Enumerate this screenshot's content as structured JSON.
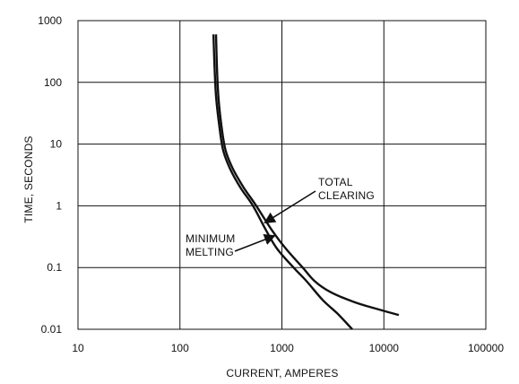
{
  "chart_data": {
    "type": "line",
    "xlabel": "CURRENT, AMPERES",
    "ylabel": "TIME, SECONDS",
    "x_scale": "log",
    "y_scale": "log",
    "xlim": [
      10,
      100000
    ],
    "ylim": [
      0.01,
      1000
    ],
    "x_ticks": [
      "10",
      "100",
      "1000",
      "10000",
      "100000"
    ],
    "y_ticks": [
      "1000",
      "100",
      "10",
      "1",
      "0.1",
      "0.01"
    ],
    "grid": true,
    "series": [
      {
        "name": "TOTAL CLEARING",
        "points": [
          [
            226,
            600
          ],
          [
            230,
            200
          ],
          [
            238,
            60
          ],
          [
            255,
            20
          ],
          [
            280,
            8
          ],
          [
            330,
            4
          ],
          [
            420,
            2
          ],
          [
            560,
            1
          ],
          [
            800,
            0.4
          ],
          [
            1100,
            0.2
          ],
          [
            1600,
            0.1
          ],
          [
            2100,
            0.06
          ],
          [
            3000,
            0.04
          ],
          [
            5000,
            0.028
          ],
          [
            8000,
            0.022
          ],
          [
            14000,
            0.017
          ]
        ]
      },
      {
        "name": "MINIMUM MELTING",
        "points": [
          [
            213,
            600
          ],
          [
            218,
            200
          ],
          [
            226,
            60
          ],
          [
            243,
            20
          ],
          [
            265,
            8
          ],
          [
            310,
            4
          ],
          [
            390,
            2
          ],
          [
            520,
            1
          ],
          [
            700,
            0.4
          ],
          [
            900,
            0.2
          ],
          [
            1300,
            0.1
          ],
          [
            1750,
            0.06
          ],
          [
            2500,
            0.03
          ],
          [
            3500,
            0.018
          ],
          [
            4900,
            0.01
          ]
        ]
      }
    ],
    "annotations": [
      {
        "lines": [
          "TOTAL",
          "CLEARING"
        ],
        "target_series": "TOTAL CLEARING"
      },
      {
        "lines": [
          "MINIMUM",
          "MELTING"
        ],
        "target_series": "MINIMUM MELTING"
      }
    ]
  }
}
